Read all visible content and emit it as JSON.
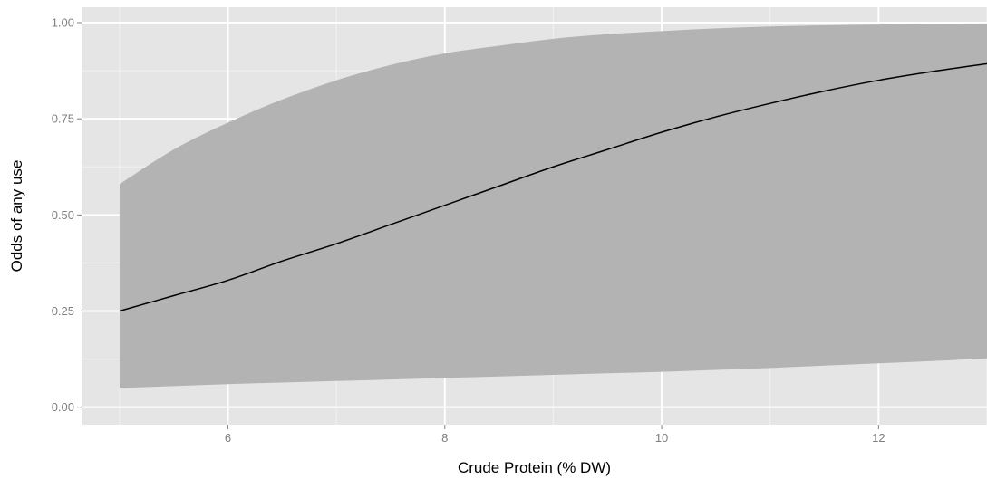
{
  "chart_data": {
    "type": "line",
    "title": "",
    "xlabel": "Crude Protein (% DW)",
    "ylabel": "Odds of any use",
    "xlim": [
      4.65,
      13.0
    ],
    "ylim": [
      0.0,
      1.0
    ],
    "x_ticks": [
      6,
      8,
      10,
      12
    ],
    "x_tick_labels": [
      "6",
      "8",
      "10",
      "12"
    ],
    "y_ticks": [
      0.0,
      0.25,
      0.5,
      0.75,
      1.0
    ],
    "y_tick_labels": [
      "0.00",
      "0.25",
      "0.50",
      "0.75",
      "1.00"
    ],
    "grid": true,
    "legend": "none",
    "colors": {
      "panel_background": "#e5e5e5",
      "grid_major": "#ffffff",
      "grid_minor": "#f2f2f2",
      "ribbon": "#b3b3b3",
      "line": "#000000",
      "tick_label": "#7f7f7f"
    },
    "series": [
      {
        "x": [
          5.0,
          5.5,
          6.0,
          6.5,
          7.0,
          7.5,
          8.0,
          8.5,
          9.0,
          9.5,
          10.0,
          10.5,
          11.0,
          11.5,
          12.0,
          12.5,
          13.0
        ],
        "y": [
          0.25,
          0.29,
          0.33,
          0.38,
          0.425,
          0.475,
          0.525,
          0.575,
          0.625,
          0.67,
          0.715,
          0.755,
          0.79,
          0.822,
          0.85,
          0.873,
          0.893
        ],
        "lower": [
          0.05,
          0.055,
          0.06,
          0.064,
          0.068,
          0.072,
          0.076,
          0.08,
          0.084,
          0.088,
          0.092,
          0.097,
          0.102,
          0.108,
          0.114,
          0.12,
          0.127
        ],
        "upper": [
          0.58,
          0.67,
          0.74,
          0.8,
          0.85,
          0.89,
          0.92,
          0.94,
          0.958,
          0.97,
          0.978,
          0.985,
          0.99,
          0.993,
          0.995,
          0.997,
          0.998
        ]
      }
    ]
  }
}
